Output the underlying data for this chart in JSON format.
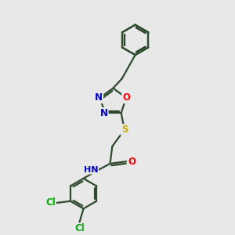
{
  "background_color": "#e8e8e8",
  "atom_colors": {
    "N": "#0000cc",
    "O": "#ff0000",
    "S": "#ccaa00",
    "Cl": "#00aa00",
    "C": "#000000",
    "H": "#555555"
  },
  "bond_color": "#2d4a2d",
  "bond_width": 1.6,
  "fig_width": 3.0,
  "fig_height": 3.0,
  "dpi": 100,
  "xlim": [
    0,
    10
  ],
  "ylim": [
    0,
    10
  ]
}
